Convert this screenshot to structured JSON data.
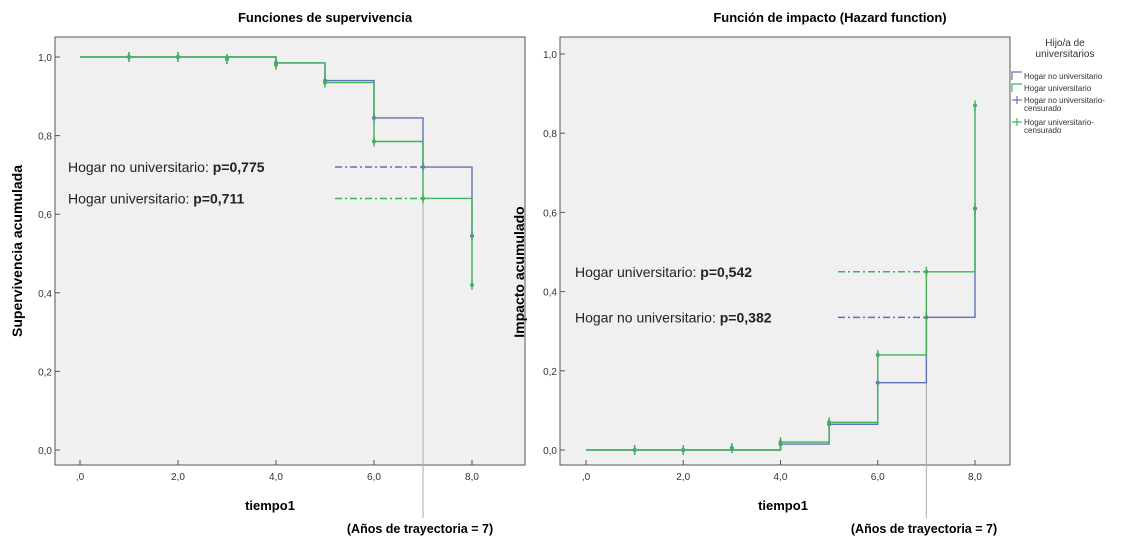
{
  "chart_data": [
    {
      "type": "line",
      "title": "Funciones de supervivencia",
      "xlabel": "tiempo1",
      "ylabel": "Supervivencia acumulada",
      "xlim": [
        0,
        8
      ],
      "ylim": [
        0,
        1
      ],
      "xticks": [
        ",0",
        "2,0",
        "4,0",
        "6,0",
        "8,0"
      ],
      "yticks": [
        "0,0",
        "0,2",
        "0,4",
        "0,6",
        "0,8",
        "1,0"
      ],
      "series": [
        {
          "name": "Hogar no universitario",
          "color": "#6272b9",
          "step_x": [
            0,
            4,
            5,
            6,
            7,
            8
          ],
          "step_y": [
            1.0,
            0.985,
            0.94,
            0.845,
            0.72,
            0.545
          ],
          "end_x": 8,
          "censored_x": [
            1,
            2,
            3,
            4,
            5,
            6,
            7,
            8
          ],
          "censored_y": [
            1.0,
            1.0,
            0.995,
            0.985,
            0.94,
            0.845,
            0.72,
            0.545
          ]
        },
        {
          "name": "Hogar universitario",
          "color": "#3fb25b",
          "step_x": [
            0,
            4,
            5,
            6,
            7,
            8
          ],
          "step_y": [
            1.0,
            0.985,
            0.935,
            0.785,
            0.64,
            0.42
          ],
          "end_x": 8,
          "censored_x": [
            1,
            2,
            3,
            4,
            5,
            6,
            7,
            8
          ],
          "censored_y": [
            1.0,
            1.0,
            0.995,
            0.98,
            0.935,
            0.785,
            0.64,
            0.42
          ]
        }
      ],
      "annotations": [
        {
          "label": "Hogar no universitario:",
          "value": "p=0,775",
          "y": 0.72,
          "series": 0
        },
        {
          "label": "Hogar universitario:",
          "value": "p=0,711",
          "y": 0.64,
          "series": 1
        }
      ],
      "marker_x": 7,
      "marker_label": "(Años de trayectoria = 7)"
    },
    {
      "type": "line",
      "title": "Función de impacto (Hazard function)",
      "xlabel": "tiempo1",
      "ylabel": "Impacto acumulado",
      "xlim": [
        0,
        8
      ],
      "ylim": [
        0,
        1
      ],
      "xticks": [
        ",0",
        "2,0",
        "4,0",
        "6,0",
        "8,0"
      ],
      "yticks": [
        "0,0",
        "0,2",
        "0,4",
        "0,6",
        "0,8",
        "1,0"
      ],
      "series": [
        {
          "name": "Hogar no universitario",
          "color": "#6272b9",
          "step_x": [
            0,
            4,
            5,
            6,
            7,
            8
          ],
          "step_y": [
            0.0,
            0.015,
            0.065,
            0.17,
            0.335,
            0.61
          ],
          "end_x": 8,
          "censored_x": [
            1,
            2,
            3,
            4,
            5,
            6,
            7,
            8
          ],
          "censored_y": [
            0.0,
            0.0,
            0.005,
            0.015,
            0.065,
            0.17,
            0.335,
            0.61
          ]
        },
        {
          "name": "Hogar universitario",
          "color": "#3fb25b",
          "step_x": [
            0,
            4,
            5,
            6,
            7,
            8
          ],
          "step_y": [
            0.0,
            0.02,
            0.07,
            0.24,
            0.45,
            0.87
          ],
          "end_x": 8,
          "censored_x": [
            1,
            2,
            3,
            4,
            5,
            6,
            7,
            8
          ],
          "censored_y": [
            0.0,
            0.0,
            0.005,
            0.02,
            0.07,
            0.24,
            0.45,
            0.87
          ]
        }
      ],
      "annotations": [
        {
          "label": "Hogar universitario:",
          "value": "p=0,542",
          "y": 0.45,
          "series": 1
        },
        {
          "label": "Hogar no universitario:",
          "value": "p=0,382",
          "y": 0.335,
          "series": 0
        }
      ],
      "marker_x": 7,
      "marker_label": "(Años de trayectoria = 7)",
      "legend": {
        "title_lines": [
          "Hijo/a de",
          "universitarios"
        ],
        "placement": "right",
        "entries": [
          {
            "lines": [
              "Hogar no universitario"
            ],
            "color": "#6272b9",
            "style": "line"
          },
          {
            "lines": [
              "Hogar universitario"
            ],
            "color": "#3fb25b",
            "style": "line"
          },
          {
            "lines": [
              "Hogar no universitario-",
              "censurado"
            ],
            "color": "#6272b9",
            "style": "censored"
          },
          {
            "lines": [
              "Hogar universitario-",
              "censurado"
            ],
            "color": "#3fb25b",
            "style": "censored"
          }
        ]
      }
    }
  ]
}
